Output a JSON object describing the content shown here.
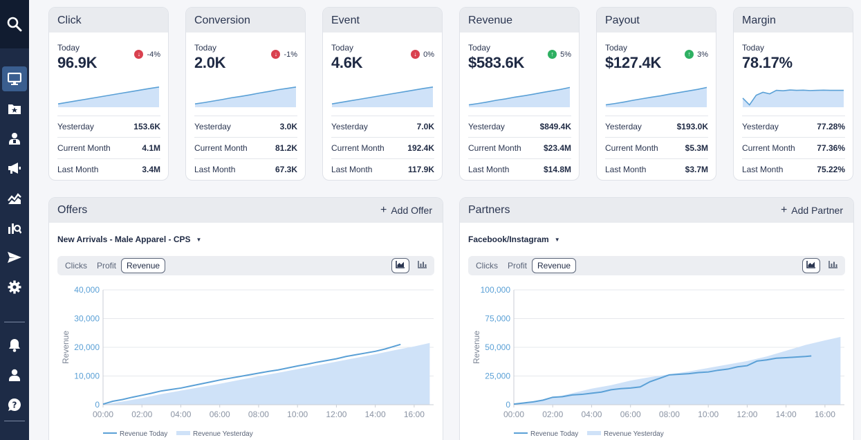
{
  "sidebar": {
    "items": [
      {
        "icon": "search-icon"
      },
      {
        "icon": "monitor-icon",
        "active": true
      },
      {
        "icon": "folder-star-icon"
      },
      {
        "icon": "user-tie-icon"
      },
      {
        "icon": "megaphone-icon"
      },
      {
        "icon": "chart-trend-icon"
      },
      {
        "icon": "report-search-icon"
      },
      {
        "icon": "send-icon"
      },
      {
        "icon": "gear-icon"
      },
      {
        "icon": "bell-icon"
      },
      {
        "icon": "user-icon"
      },
      {
        "icon": "help-icon"
      }
    ]
  },
  "kpis": [
    {
      "title": "Click",
      "today_label": "Today",
      "value": "96.9K",
      "delta": "-4%",
      "direction": "down",
      "spark": [
        0.1,
        0.18,
        0.26,
        0.34,
        0.42,
        0.5,
        0.58,
        0.66,
        0.74,
        0.82,
        0.9,
        0.97
      ],
      "rows": [
        {
          "label": "Yesterday",
          "value": "153.6K"
        },
        {
          "label": "Current Month",
          "value": "4.1M"
        },
        {
          "label": "Last Month",
          "value": "3.4M"
        }
      ]
    },
    {
      "title": "Conversion",
      "today_label": "Today",
      "value": "2.0K",
      "delta": "-1%",
      "direction": "down",
      "spark": [
        0.1,
        0.17,
        0.25,
        0.33,
        0.42,
        0.49,
        0.57,
        0.66,
        0.74,
        0.83,
        0.9,
        0.97
      ],
      "rows": [
        {
          "label": "Yesterday",
          "value": "3.0K"
        },
        {
          "label": "Current Month",
          "value": "81.2K"
        },
        {
          "label": "Last Month",
          "value": "67.3K"
        }
      ]
    },
    {
      "title": "Event",
      "today_label": "Today",
      "value": "4.6K",
      "delta": "0%",
      "direction": "down",
      "spark": [
        0.1,
        0.18,
        0.26,
        0.34,
        0.42,
        0.5,
        0.58,
        0.66,
        0.74,
        0.82,
        0.9,
        0.97
      ],
      "rows": [
        {
          "label": "Yesterday",
          "value": "7.0K"
        },
        {
          "label": "Current Month",
          "value": "192.4K"
        },
        {
          "label": "Last Month",
          "value": "117.9K"
        }
      ]
    },
    {
      "title": "Revenue",
      "today_label": "Today",
      "value": "$583.6K",
      "delta": "5%",
      "direction": "up",
      "spark": [
        0.05,
        0.12,
        0.2,
        0.29,
        0.36,
        0.45,
        0.52,
        0.6,
        0.69,
        0.77,
        0.85,
        0.95
      ],
      "rows": [
        {
          "label": "Yesterday",
          "value": "$849.4K"
        },
        {
          "label": "Current Month",
          "value": "$23.4M"
        },
        {
          "label": "Last Month",
          "value": "$14.8M"
        }
      ]
    },
    {
      "title": "Payout",
      "today_label": "Today",
      "value": "$127.4K",
      "delta": "3%",
      "direction": "up",
      "spark": [
        0.05,
        0.12,
        0.2,
        0.29,
        0.37,
        0.45,
        0.52,
        0.61,
        0.69,
        0.77,
        0.85,
        0.95
      ],
      "rows": [
        {
          "label": "Yesterday",
          "value": "$193.0K"
        },
        {
          "label": "Current Month",
          "value": "$5.3M"
        },
        {
          "label": "Last Month",
          "value": "$3.7M"
        }
      ]
    },
    {
      "title": "Margin",
      "today_label": "Today",
      "value": "78.17%",
      "delta": "",
      "direction": "",
      "spark": [
        0.4,
        0.05,
        0.55,
        0.7,
        0.62,
        0.8,
        0.78,
        0.82,
        0.8,
        0.81,
        0.79,
        0.8,
        0.81,
        0.8,
        0.8,
        0.8
      ],
      "rows": [
        {
          "label": "Yesterday",
          "value": "77.28%"
        },
        {
          "label": "Current Month",
          "value": "77.36%"
        },
        {
          "label": "Last Month",
          "value": "75.22%"
        }
      ]
    }
  ],
  "panels": [
    {
      "title": "Offers",
      "add_label": "Add Offer",
      "selector": "New Arrivals - Male Apparel - CPS",
      "tabs": [
        {
          "label": "Clicks"
        },
        {
          "label": "Profit"
        },
        {
          "label": "Revenue",
          "active": true
        }
      ]
    },
    {
      "title": "Partners",
      "add_label": "Add Partner",
      "selector": "Facebook/Instagram",
      "tabs": [
        {
          "label": "Clicks"
        },
        {
          "label": "Profit"
        },
        {
          "label": "Revenue",
          "active": true
        }
      ]
    }
  ],
  "chart_data": [
    {
      "type": "area",
      "ylabel": "Revenue",
      "x_ticks": [
        "00:00",
        "02:00",
        "04:00",
        "06:00",
        "08:00",
        "10:00",
        "12:00",
        "14:00",
        "16:00"
      ],
      "ylim": [
        0,
        40000
      ],
      "y_ticks": [
        0,
        10000,
        20000,
        30000,
        40000
      ],
      "y_tick_labels": [
        "0",
        "10,000",
        "20,000",
        "30,000",
        "40,000"
      ],
      "series": [
        {
          "name": "Revenue Today",
          "kind": "line",
          "color": "#5aa0d6",
          "x": [
            0,
            0.5,
            1,
            1.5,
            2,
            2.5,
            3,
            3.5,
            4,
            4.5,
            5,
            5.5,
            6,
            6.5,
            7,
            7.5,
            8,
            8.5,
            9,
            9.5,
            10,
            10.5,
            11,
            11.5,
            12,
            12.5,
            13,
            13.5,
            14,
            14.5,
            15,
            15.3
          ],
          "y": [
            200,
            1200,
            1800,
            2600,
            3300,
            4000,
            4800,
            5300,
            5800,
            6500,
            7200,
            7900,
            8600,
            9200,
            9800,
            10400,
            11000,
            11600,
            12100,
            12800,
            13500,
            14100,
            14800,
            15400,
            16000,
            16800,
            17400,
            18000,
            18600,
            19400,
            20400,
            21000
          ]
        },
        {
          "name": "Revenue Yesterday",
          "kind": "area",
          "color": "#cfe2f8",
          "x": [
            0,
            1,
            2,
            3,
            4,
            5,
            6,
            7,
            8,
            9,
            10,
            11,
            12,
            13,
            14,
            15,
            16,
            16.8
          ],
          "y": [
            100,
            1100,
            2300,
            3700,
            4900,
            6100,
            7300,
            8600,
            9900,
            11100,
            12400,
            13700,
            15000,
            16300,
            17600,
            19000,
            20300,
            21500
          ]
        }
      ],
      "legend": "bottom"
    },
    {
      "type": "area",
      "ylabel": "Revenue",
      "x_ticks": [
        "00:00",
        "02:00",
        "04:00",
        "06:00",
        "08:00",
        "10:00",
        "12:00",
        "14:00",
        "16:00"
      ],
      "ylim": [
        0,
        100000
      ],
      "y_ticks": [
        0,
        25000,
        50000,
        75000,
        100000
      ],
      "y_tick_labels": [
        "0",
        "25,000",
        "50,000",
        "75,000",
        "100,000"
      ],
      "series": [
        {
          "name": "Revenue Today",
          "kind": "line",
          "color": "#5aa0d6",
          "x": [
            0,
            0.5,
            1,
            1.5,
            2,
            2.5,
            3,
            3.5,
            4,
            4.5,
            5,
            5.5,
            6,
            6.5,
            7,
            7.5,
            8,
            8.5,
            9,
            9.5,
            10,
            10.5,
            11,
            11.5,
            12,
            12.5,
            13,
            13.5,
            14,
            14.5,
            15,
            15.3
          ],
          "y": [
            500,
            1500,
            2500,
            4000,
            6500,
            7000,
            8500,
            9000,
            10000,
            11000,
            13000,
            14000,
            14500,
            15500,
            20000,
            23000,
            26000,
            26500,
            27000,
            28000,
            28500,
            30000,
            31000,
            33000,
            34000,
            38000,
            39000,
            40500,
            41000,
            41500,
            42000,
            42500
          ]
        },
        {
          "name": "Revenue Yesterday",
          "kind": "area",
          "color": "#cfe2f8",
          "x": [
            0,
            1,
            2,
            3,
            4,
            5,
            6,
            7,
            8,
            9,
            10,
            11,
            12,
            13,
            14,
            15,
            16,
            16.8
          ],
          "y": [
            500,
            3000,
            6000,
            10000,
            14000,
            17000,
            21000,
            24000,
            26500,
            29000,
            32000,
            35000,
            38000,
            42000,
            47000,
            52000,
            56000,
            59000
          ]
        }
      ],
      "legend": "bottom"
    }
  ]
}
